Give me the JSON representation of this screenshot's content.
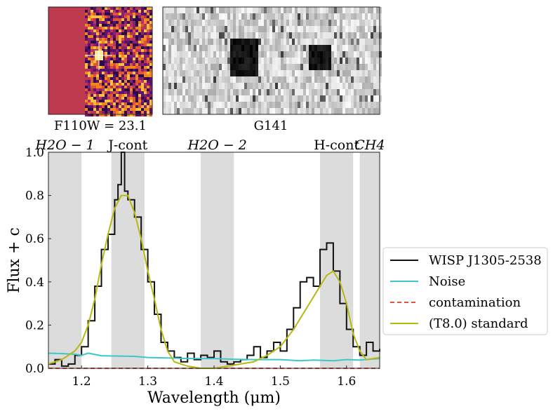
{
  "panels": {
    "left_image_caption": "F110W = 23.1",
    "right_image_caption": "G141"
  },
  "legend": {
    "placement": "right",
    "entries": [
      {
        "label": "WISP J1305-2538",
        "color": "#111111",
        "style": "solid"
      },
      {
        "label": "Noise",
        "color": "#3cc8c8",
        "style": "solid"
      },
      {
        "label": "contamination",
        "color": "#e8503a",
        "style": "dashed"
      },
      {
        "label": "(T8.0) standard",
        "color": "#b8b812",
        "style": "solid"
      }
    ]
  },
  "chart_data": {
    "type": "line",
    "xlabel": "Wavelength (μm)",
    "ylabel": "Flux + c",
    "xlim": [
      1.15,
      1.65
    ],
    "ylim": [
      0.0,
      1.0
    ],
    "xticks": [
      "1.2",
      "1.3",
      "1.4",
      "1.5",
      "1.6"
    ],
    "yticks": [
      "0.0",
      "0.2",
      "0.4",
      "0.6",
      "0.8",
      "1.0"
    ],
    "grid": false,
    "bands": [
      {
        "label": "H2O − 1",
        "x0": 1.15,
        "x1": 1.2
      },
      {
        "label": "J-cont",
        "x0": 1.245,
        "x1": 1.295
      },
      {
        "label": "H2O − 2",
        "x0": 1.38,
        "x1": 1.43
      },
      {
        "label": "H-cont",
        "x0": 1.56,
        "x1": 1.61
      },
      {
        "label": "CH4",
        "x0": 1.62,
        "x1": 1.65
      }
    ],
    "series": [
      {
        "name": "WISP J1305-2538",
        "x": [
          1.15,
          1.16,
          1.17,
          1.18,
          1.19,
          1.2,
          1.21,
          1.22,
          1.23,
          1.24,
          1.25,
          1.255,
          1.26,
          1.265,
          1.27,
          1.28,
          1.29,
          1.3,
          1.31,
          1.32,
          1.33,
          1.34,
          1.35,
          1.36,
          1.37,
          1.38,
          1.39,
          1.4,
          1.41,
          1.42,
          1.43,
          1.44,
          1.45,
          1.46,
          1.47,
          1.48,
          1.49,
          1.5,
          1.51,
          1.52,
          1.53,
          1.54,
          1.55,
          1.56,
          1.57,
          1.58,
          1.59,
          1.6,
          1.61,
          1.62,
          1.63,
          1.64,
          1.65
        ],
        "y": [
          0.02,
          0.04,
          0.01,
          0.02,
          0.06,
          0.1,
          0.22,
          0.38,
          0.55,
          0.62,
          0.78,
          0.85,
          1.0,
          0.82,
          0.78,
          0.7,
          0.55,
          0.4,
          0.25,
          0.12,
          0.08,
          0.05,
          0.03,
          0.07,
          0.04,
          0.06,
          0.05,
          0.08,
          0.03,
          0.02,
          0.03,
          0.04,
          0.06,
          0.1,
          0.05,
          0.08,
          0.12,
          0.08,
          0.18,
          0.28,
          0.4,
          0.42,
          0.38,
          0.55,
          0.58,
          0.45,
          0.3,
          0.18,
          0.1,
          0.06,
          0.12,
          0.08,
          0.09
        ]
      },
      {
        "name": "Noise",
        "x": [
          1.15,
          1.17,
          1.19,
          1.2,
          1.21,
          1.23,
          1.25,
          1.28,
          1.3,
          1.33,
          1.36,
          1.4,
          1.43,
          1.46,
          1.5,
          1.53,
          1.55,
          1.58,
          1.6,
          1.62,
          1.65
        ],
        "y": [
          0.07,
          0.068,
          0.065,
          0.06,
          0.07,
          0.058,
          0.057,
          0.055,
          0.05,
          0.048,
          0.045,
          0.045,
          0.042,
          0.04,
          0.04,
          0.035,
          0.038,
          0.035,
          0.04,
          0.038,
          0.045
        ]
      },
      {
        "name": "contamination",
        "x": [
          1.15,
          1.65
        ],
        "y": [
          0.0,
          0.0
        ]
      },
      {
        "name": "(T8.0) standard",
        "x": [
          1.15,
          1.17,
          1.19,
          1.2,
          1.21,
          1.22,
          1.23,
          1.24,
          1.25,
          1.26,
          1.27,
          1.28,
          1.29,
          1.3,
          1.31,
          1.32,
          1.33,
          1.34,
          1.36,
          1.38,
          1.4,
          1.42,
          1.44,
          1.46,
          1.48,
          1.5,
          1.52,
          1.54,
          1.56,
          1.57,
          1.58,
          1.59,
          1.6,
          1.61,
          1.62,
          1.63,
          1.65
        ],
        "y": [
          0.02,
          0.04,
          0.08,
          0.12,
          0.2,
          0.32,
          0.48,
          0.62,
          0.74,
          0.8,
          0.8,
          0.72,
          0.6,
          0.45,
          0.32,
          0.18,
          0.08,
          0.03,
          0.01,
          0.0,
          0.0,
          0.01,
          0.02,
          0.03,
          0.06,
          0.1,
          0.18,
          0.28,
          0.38,
          0.43,
          0.45,
          0.4,
          0.3,
          0.16,
          0.08,
          0.04,
          0.05
        ]
      }
    ]
  }
}
